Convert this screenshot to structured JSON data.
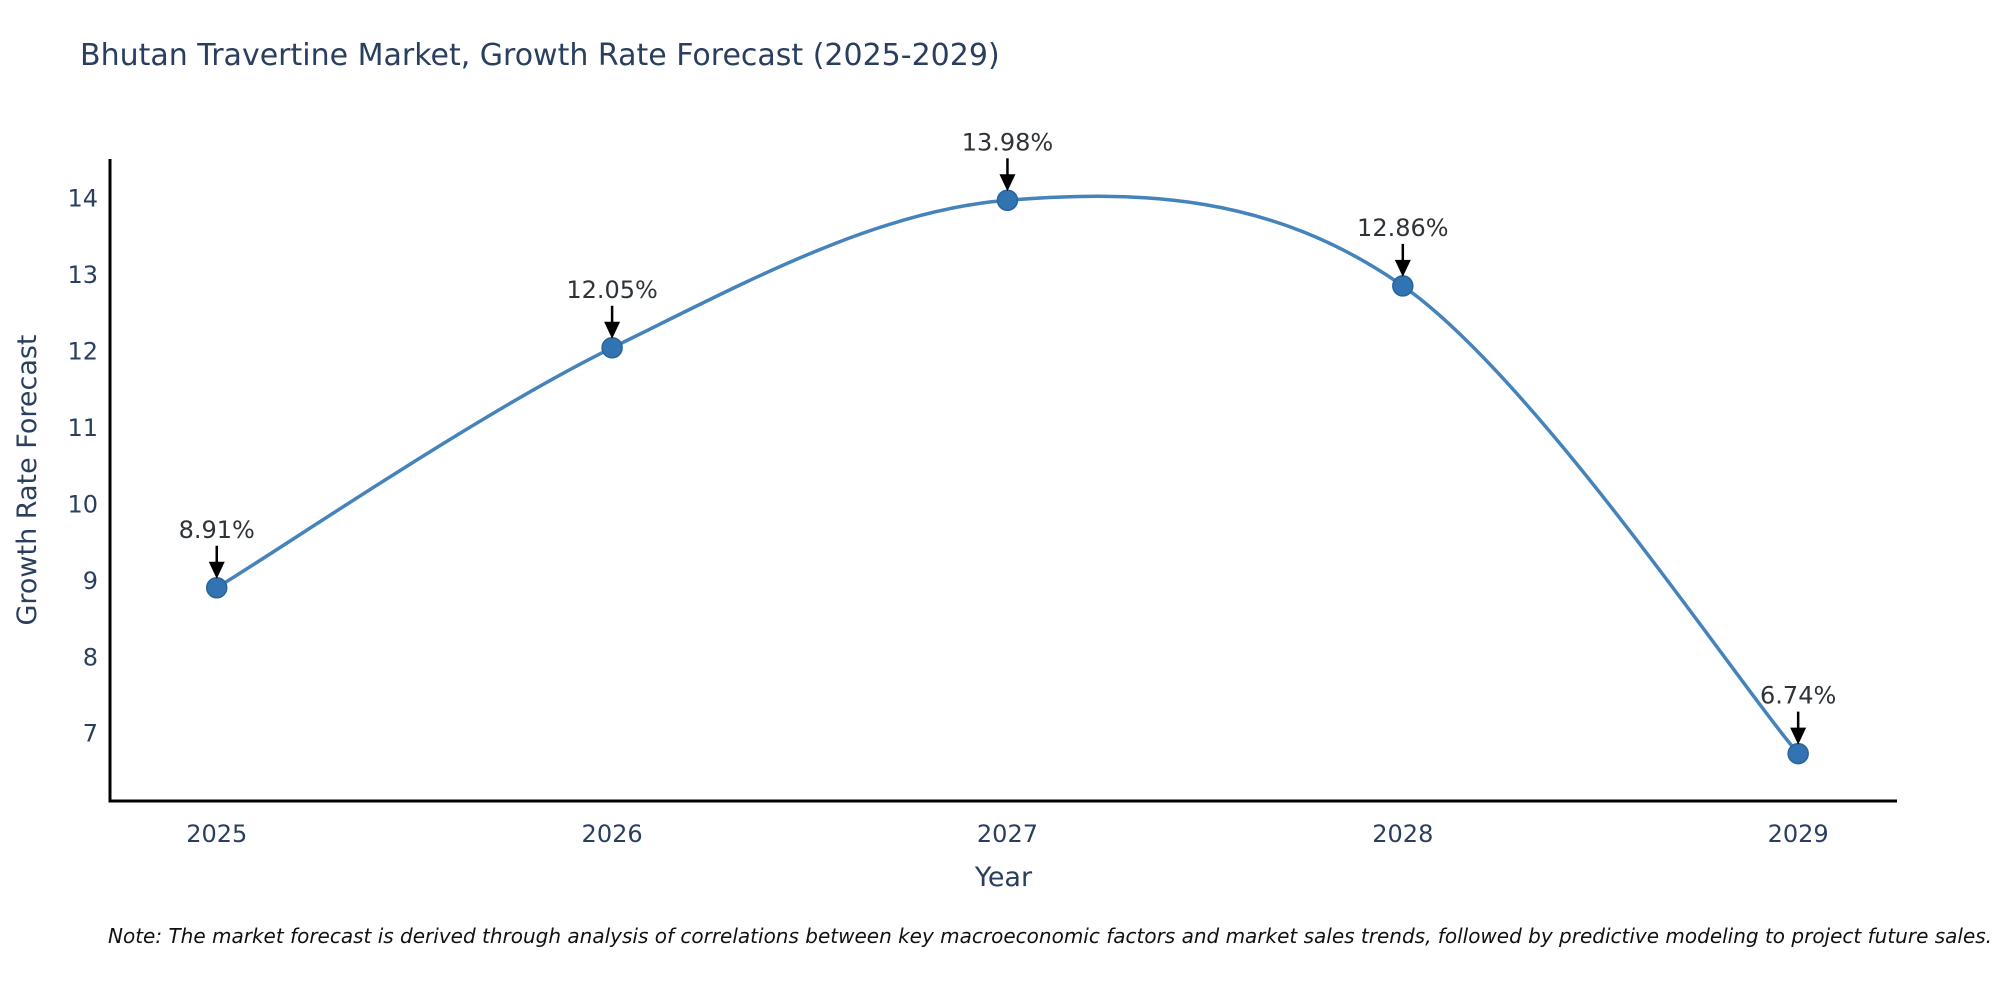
{
  "page": {
    "title": "Bhutan Travertine Market, Growth Rate Forecast (2025-2029)",
    "note": "Note: The market forecast is derived through analysis of correlations between key macroeconomic factors and market sales trends, followed by predictive modeling to project future sales."
  },
  "chart_data": {
    "type": "line",
    "title": "Bhutan Travertine Market, Growth Rate Forecast (2025-2029)",
    "x": [
      2025,
      2026,
      2027,
      2028,
      2029
    ],
    "y": [
      8.91,
      12.05,
      13.98,
      12.86,
      6.74
    ],
    "point_labels": [
      "8.91%",
      "12.05%",
      "13.98%",
      "12.86%",
      "6.74%"
    ],
    "xlabel": "Year",
    "ylabel": "Growth Rate Forecast",
    "xticks": [
      2025,
      2026,
      2027,
      2028,
      2029
    ],
    "yticks": [
      7,
      8,
      9,
      10,
      11,
      12,
      13,
      14
    ],
    "xlim": [
      2024.73,
      2029.25
    ],
    "ylim": [
      6.12,
      14.52
    ],
    "line_shape": "spline",
    "grid": false,
    "legend": "none",
    "colors": {
      "line": "#4583bb",
      "marker_fill": "#3273b1",
      "marker_edge": "#27649c",
      "axis_line": "#000000",
      "chart_text": "#2a3f5f",
      "annotation_text": "#2e3338",
      "annotation_arrow": "#000000",
      "note_text": "#111111",
      "background": "#ffffff"
    }
  }
}
